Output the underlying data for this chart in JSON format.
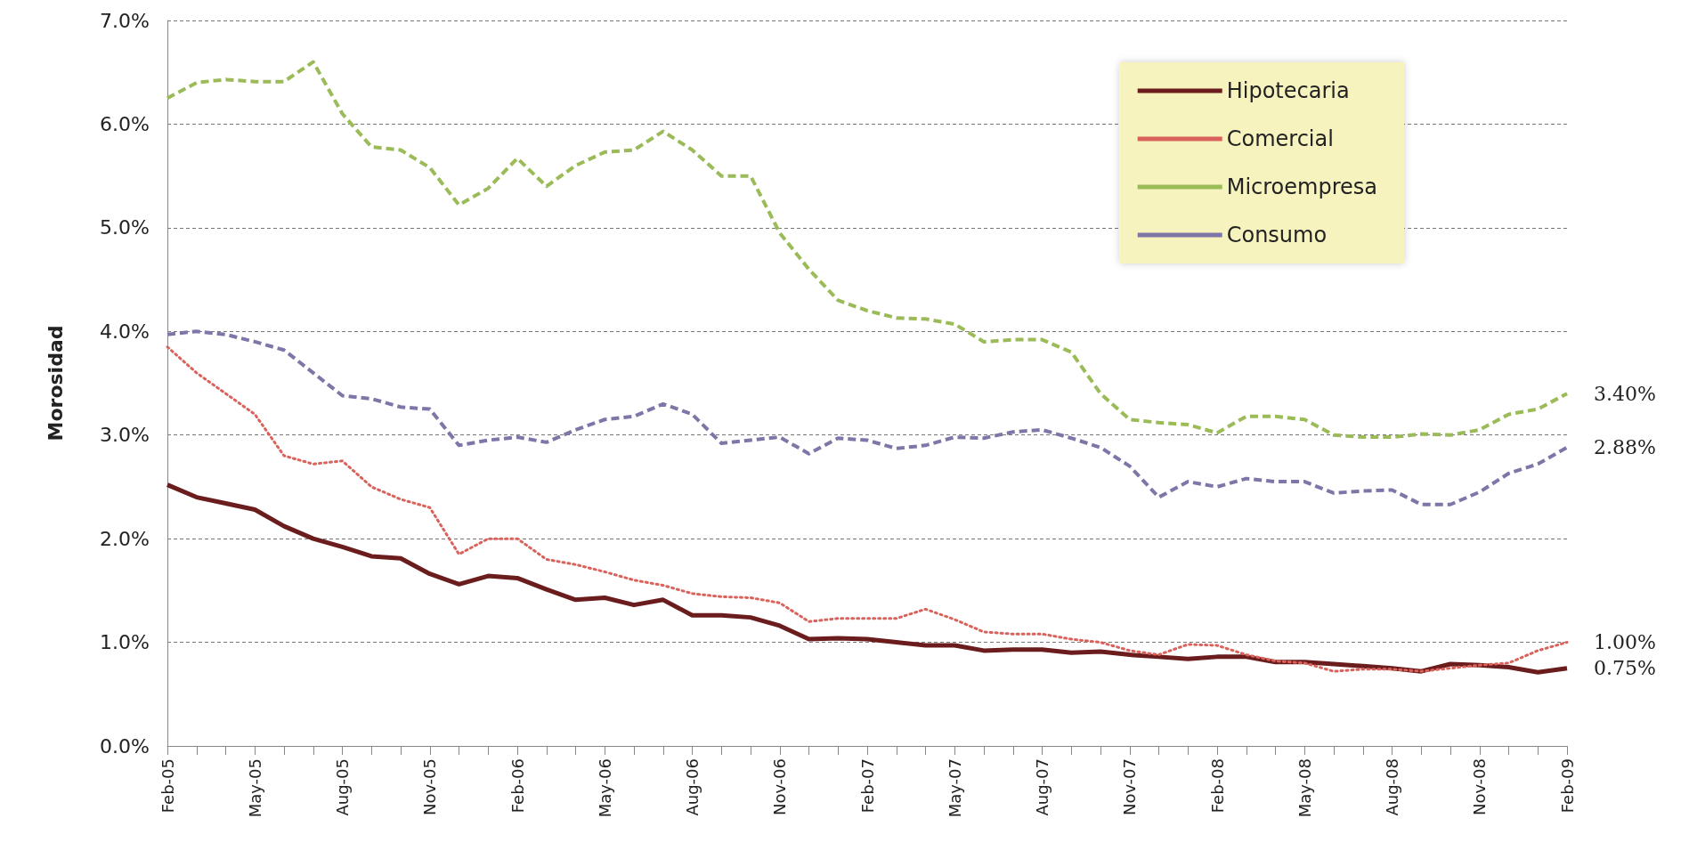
{
  "chart_data": {
    "type": "line",
    "ylabel": "Morosidad",
    "categories": [
      "Feb-05",
      null,
      null,
      "May-05",
      null,
      null,
      "Aug-05",
      null,
      null,
      "Nov-05",
      null,
      null,
      "Feb-06",
      null,
      null,
      "May-06",
      null,
      null,
      "Aug-06",
      null,
      null,
      "Nov-06",
      null,
      null,
      "Feb-07",
      null,
      null,
      "May-07",
      null,
      null,
      "Aug-07",
      null,
      null,
      "Nov-07",
      null,
      null,
      "Feb-08",
      null,
      null,
      "May-08",
      null,
      null,
      "Aug-08",
      null,
      null,
      "Nov-08",
      null,
      null,
      "Feb-09"
    ],
    "series": [
      {
        "name": "Hipotecaria",
        "color": "#6b1c1c",
        "line_style": "solid",
        "values": [
          2.52,
          2.4,
          2.34,
          2.28,
          2.12,
          2.0,
          1.92,
          1.83,
          1.81,
          1.66,
          1.56,
          1.64,
          1.62,
          1.51,
          1.41,
          1.43,
          1.36,
          1.41,
          1.26,
          1.26,
          1.24,
          1.16,
          1.03,
          1.04,
          1.03,
          1.0,
          0.97,
          0.97,
          0.92,
          0.93,
          0.93,
          0.9,
          0.91,
          0.88,
          0.86,
          0.84,
          0.86,
          0.86,
          0.81,
          0.81,
          0.79,
          0.77,
          0.75,
          0.72,
          0.79,
          0.78,
          0.76,
          0.71,
          0.75
        ],
        "value_labels": [
          null,
          null,
          null,
          null,
          null,
          null,
          null,
          null,
          null,
          null,
          null,
          null,
          null,
          null,
          null,
          null,
          null,
          null,
          null,
          null,
          null,
          null,
          null,
          null,
          null,
          null,
          null,
          null,
          null,
          null,
          null,
          null,
          null,
          null,
          null,
          null,
          null,
          null,
          null,
          null,
          null,
          null,
          null,
          null,
          null,
          null,
          null,
          null,
          "0.75%"
        ]
      },
      {
        "name": "Comercial",
        "color": "#d9625c",
        "line_style": "dotted",
        "values": [
          3.85,
          3.6,
          3.4,
          3.2,
          2.8,
          2.72,
          2.75,
          2.5,
          2.38,
          2.3,
          1.85,
          2.0,
          2.0,
          1.8,
          1.75,
          1.68,
          1.6,
          1.55,
          1.47,
          1.44,
          1.43,
          1.38,
          1.2,
          1.23,
          1.23,
          1.23,
          1.32,
          1.22,
          1.1,
          1.08,
          1.08,
          1.03,
          1.0,
          0.92,
          0.88,
          0.98,
          0.97,
          0.88,
          0.82,
          0.8,
          0.72,
          0.74,
          0.74,
          0.72,
          0.75,
          0.78,
          0.8,
          0.92,
          1.0
        ],
        "value_labels": [
          null,
          null,
          null,
          null,
          null,
          null,
          null,
          null,
          null,
          null,
          null,
          null,
          null,
          null,
          null,
          null,
          null,
          null,
          null,
          null,
          null,
          null,
          null,
          null,
          null,
          null,
          null,
          null,
          null,
          null,
          null,
          null,
          null,
          null,
          null,
          null,
          null,
          null,
          null,
          null,
          null,
          null,
          null,
          null,
          null,
          null,
          null,
          null,
          "1.00%"
        ]
      },
      {
        "name": "Microempresa",
        "color": "#9bbb59",
        "line_style": "dashed",
        "values": [
          6.25,
          6.4,
          6.43,
          6.41,
          6.41,
          6.6,
          6.1,
          5.78,
          5.75,
          5.58,
          5.22,
          5.38,
          5.67,
          5.4,
          5.6,
          5.73,
          5.75,
          5.93,
          5.75,
          5.5,
          5.5,
          4.95,
          4.6,
          4.3,
          4.2,
          4.13,
          4.12,
          4.07,
          3.9,
          3.92,
          3.92,
          3.8,
          3.4,
          3.15,
          3.12,
          3.1,
          3.02,
          3.18,
          3.18,
          3.15,
          3.0,
          2.98,
          2.98,
          3.01,
          3.0,
          3.05,
          3.2,
          3.25,
          3.4
        ],
        "value_labels": [
          null,
          null,
          null,
          null,
          null,
          null,
          null,
          null,
          null,
          null,
          null,
          null,
          null,
          null,
          null,
          null,
          null,
          null,
          null,
          null,
          null,
          null,
          null,
          null,
          null,
          null,
          null,
          null,
          null,
          null,
          null,
          null,
          null,
          null,
          null,
          null,
          null,
          null,
          null,
          null,
          null,
          null,
          null,
          null,
          null,
          null,
          null,
          null,
          "3.40%"
        ]
      },
      {
        "name": "Consumo",
        "color": "#7f76a8",
        "line_style": "dashed",
        "values": [
          3.97,
          4.0,
          3.97,
          3.9,
          3.82,
          3.6,
          3.38,
          3.35,
          3.27,
          3.25,
          2.9,
          2.95,
          2.98,
          2.93,
          3.05,
          3.15,
          3.18,
          3.3,
          3.2,
          2.92,
          2.95,
          2.98,
          2.82,
          2.97,
          2.95,
          2.87,
          2.9,
          2.98,
          2.97,
          3.03,
          3.05,
          2.97,
          2.88,
          2.7,
          2.4,
          2.55,
          2.5,
          2.58,
          2.55,
          2.55,
          2.44,
          2.46,
          2.47,
          2.33,
          2.33,
          2.45,
          2.63,
          2.72,
          2.88
        ],
        "value_labels": [
          null,
          null,
          null,
          null,
          null,
          null,
          null,
          null,
          null,
          null,
          null,
          null,
          null,
          null,
          null,
          null,
          null,
          null,
          null,
          null,
          null,
          null,
          null,
          null,
          null,
          null,
          null,
          null,
          null,
          null,
          null,
          null,
          null,
          null,
          null,
          null,
          null,
          null,
          null,
          null,
          null,
          null,
          null,
          null,
          null,
          null,
          null,
          null,
          "2.88%"
        ]
      }
    ],
    "ylim": [
      0,
      7
    ],
    "yticks": [
      {
        "value": 0,
        "label": "0.0%"
      },
      {
        "value": 1,
        "label": "1.0%"
      },
      {
        "value": 2,
        "label": "2.0%"
      },
      {
        "value": 3,
        "label": "3.0%"
      },
      {
        "value": 4,
        "label": "4.0%"
      },
      {
        "value": 5,
        "label": "5.0%"
      },
      {
        "value": 6,
        "label": "6.0%"
      },
      {
        "value": 7,
        "label": "7.0%"
      }
    ],
    "grid": "y",
    "legend": "top right",
    "marker": "none"
  }
}
